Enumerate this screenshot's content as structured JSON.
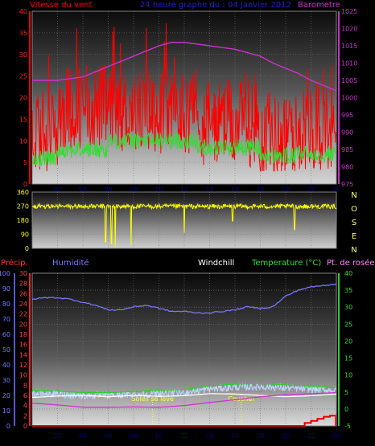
{
  "header": {
    "wind_label": "Vitesse du vent",
    "title": "24 heure graphe du : 04 Janvier 2012",
    "baro_label": "Barometre"
  },
  "compass": [
    "N",
    "O",
    "S",
    "E",
    "N"
  ],
  "bottom_labels": {
    "precip": "Précip.",
    "humidity": "Humidité",
    "windchill": "Windchill",
    "temperature": "Temperature (°C)",
    "dewpoint": "Pt. de rosée"
  },
  "annotations": {
    "sunrise": "Soleil se lève",
    "sunset": "Coucher"
  },
  "colors": {
    "wind_gust": "#ff0000",
    "wind_avg": "#33dd33",
    "baro": "#cc33cc",
    "direction": "#ffff00",
    "humidity": "#7777ff",
    "windchill": "#ffffff",
    "temperature": "#33cc33",
    "dewpoint": "#cc33cc",
    "precip": "#dd0000",
    "precip_axis": "#ff4444"
  },
  "chart_data": [
    {
      "type": "line",
      "name": "wind-baro",
      "x_ticks": [
        "02",
        "04",
        "06",
        "08",
        "10",
        "12",
        "14",
        "16",
        "18",
        "20",
        "22",
        "00"
      ],
      "wind_axis": {
        "ylim": [
          0,
          40
        ],
        "ticks": [
          "0",
          "5",
          "10",
          "15",
          "20",
          "25",
          "30",
          "35",
          "40"
        ]
      },
      "baro_axis": {
        "ylim": [
          975,
          1025
        ],
        "ticks": [
          "975",
          "980",
          "985",
          "990",
          "995",
          "1000",
          "1005",
          "1010",
          "1015",
          "1020",
          "1025"
        ]
      },
      "series": [
        {
          "name": "Barometre",
          "x": [
            0,
            2,
            4,
            6,
            8,
            10,
            11,
            12,
            13,
            14,
            16,
            18,
            19,
            20,
            21,
            22,
            23,
            24
          ],
          "values": [
            1005,
            1005,
            1006,
            1009,
            1012,
            1015,
            1016,
            1016,
            1015.5,
            1015,
            1014,
            1012,
            1010,
            1008.5,
            1007,
            1005,
            1003.5,
            1002
          ]
        }
      ]
    },
    {
      "type": "line",
      "name": "wind-direction",
      "ylim": [
        0,
        360
      ],
      "ticks": [
        "0",
        "90",
        "180",
        "270",
        "360"
      ]
    },
    {
      "type": "line",
      "name": "temp-humidity",
      "x_ticks": [
        "02",
        "04",
        "06",
        "08",
        "10",
        "12",
        "14",
        "16",
        "18",
        "20",
        "22",
        "00"
      ],
      "humidity_axis": {
        "ylim": [
          0,
          100
        ],
        "ticks": [
          "0",
          "10",
          "20",
          "30",
          "40",
          "50",
          "60",
          "70",
          "80",
          "90",
          "100"
        ]
      },
      "precip_axis": {
        "ylim": [
          0,
          30
        ],
        "ticks": [
          "0",
          "2",
          "4",
          "6",
          "8",
          "10",
          "12",
          "14",
          "16",
          "18",
          "20",
          "22",
          "24",
          "26",
          "28",
          "30"
        ]
      },
      "temp_axis": {
        "ylim": [
          -5,
          40
        ],
        "ticks": [
          "-5",
          "0",
          "5",
          "10",
          "15",
          "20",
          "25",
          "30",
          "35",
          "40"
        ]
      },
      "series": [
        {
          "name": "Humidité",
          "x": [
            0,
            1,
            2,
            3,
            4,
            5,
            6,
            7,
            8,
            9,
            10,
            11,
            12,
            13,
            14,
            15,
            16,
            17,
            18,
            19,
            20,
            21,
            22,
            23,
            24
          ],
          "values": [
            83,
            84,
            84,
            83,
            81,
            79,
            76,
            76,
            78,
            79,
            77,
            75,
            75,
            74,
            74,
            75,
            76,
            78,
            77,
            78,
            85,
            89,
            91,
            92,
            93
          ]
        },
        {
          "name": "Windchill",
          "x": [
            0,
            2,
            4,
            6,
            8,
            10,
            12,
            14,
            16,
            18,
            20,
            22,
            24
          ],
          "values": [
            3.4,
            3.8,
            4,
            3.6,
            4,
            3.7,
            3.9,
            4.5,
            4.4,
            4,
            3.6,
            3.9,
            4.4
          ]
        },
        {
          "name": "Temperature (°C)",
          "x": [
            0,
            2,
            4,
            6,
            8,
            10,
            12,
            14,
            16,
            18,
            20,
            22,
            24
          ],
          "values": [
            5.4,
            5.3,
            4.8,
            4.8,
            5.2,
            5.5,
            5.7,
            6.8,
            7.3,
            7.5,
            7.1,
            6.7,
            6.3
          ]
        },
        {
          "name": "Pt. de rosée",
          "x": [
            0,
            2,
            4,
            6,
            8,
            10,
            12,
            14,
            16,
            18,
            20,
            22,
            24
          ],
          "values": [
            1.7,
            1.2,
            0.5,
            0.5,
            0.6,
            0.5,
            1,
            1.9,
            2.7,
            3.6,
            4.2,
            4.5,
            4.8
          ]
        },
        {
          "name": "Précip.",
          "x": [
            0,
            21,
            21.5,
            22,
            22.5,
            23,
            23.5,
            24
          ],
          "values": [
            0,
            0,
            0.6,
            1.0,
            1.4,
            1.8,
            2,
            2
          ]
        }
      ],
      "events": {
        "sunrise_x": 9.5,
        "sunset_x": 16.5
      }
    }
  ]
}
